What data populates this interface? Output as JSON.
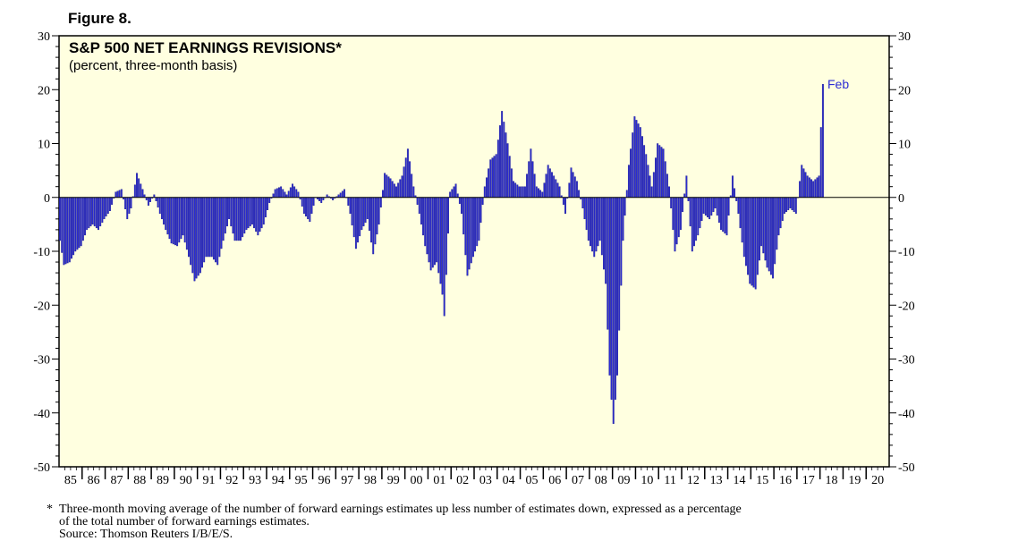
{
  "figure_label": "Figure 8.",
  "chart_data": {
    "type": "bar",
    "title": "S&P 500 NET EARNINGS REVISIONS*",
    "subtitle": "(percent, three-month basis)",
    "xlabel": "",
    "ylabel": "",
    "ylim": [
      -50,
      30
    ],
    "yticks": [
      30,
      20,
      10,
      0,
      -10,
      -20,
      -30,
      -40,
      -50
    ],
    "x_start": "1985-01",
    "x_end": "2020-12",
    "year_labels": [
      "85",
      "86",
      "87",
      "88",
      "89",
      "90",
      "91",
      "92",
      "93",
      "94",
      "95",
      "96",
      "97",
      "98",
      "99",
      "00",
      "01",
      "02",
      "03",
      "04",
      "05",
      "06",
      "07",
      "08",
      "09",
      "10",
      "11",
      "12",
      "13",
      "14",
      "15",
      "16",
      "17",
      "18",
      "19",
      "20"
    ],
    "annotation": "Feb",
    "grid": false,
    "legend": "none",
    "bar_color": "#2b2bd4",
    "background_color": "#ffffe0",
    "anchors": [
      [
        "1985-01",
        -8
      ],
      [
        "1985-03",
        -12.5
      ],
      [
        "1985-06",
        -12
      ],
      [
        "1985-09",
        -10
      ],
      [
        "1985-12",
        -9
      ],
      [
        "1986-03",
        -6
      ],
      [
        "1986-06",
        -5
      ],
      [
        "1986-09",
        -6
      ],
      [
        "1986-12",
        -4
      ],
      [
        "1987-03",
        -2.5
      ],
      [
        "1987-06",
        1
      ],
      [
        "1987-09",
        1.5
      ],
      [
        "1987-12",
        -4
      ],
      [
        "1988-02",
        -2
      ],
      [
        "1988-05",
        4.5
      ],
      [
        "1988-08",
        1.5
      ],
      [
        "1988-11",
        -1.5
      ],
      [
        "1989-02",
        0.5
      ],
      [
        "1989-05",
        -3
      ],
      [
        "1989-08",
        -6
      ],
      [
        "1989-11",
        -8.5
      ],
      [
        "1990-02",
        -9
      ],
      [
        "1990-05",
        -7
      ],
      [
        "1990-08",
        -11
      ],
      [
        "1990-11",
        -15.5
      ],
      [
        "1991-02",
        -14
      ],
      [
        "1991-05",
        -11
      ],
      [
        "1991-08",
        -11
      ],
      [
        "1991-11",
        -12.5
      ],
      [
        "1992-02",
        -8
      ],
      [
        "1992-05",
        -4
      ],
      [
        "1992-08",
        -8
      ],
      [
        "1992-11",
        -8
      ],
      [
        "1993-02",
        -6
      ],
      [
        "1993-05",
        -5
      ],
      [
        "1993-08",
        -7
      ],
      [
        "1993-11",
        -5
      ],
      [
        "1994-02",
        -1
      ],
      [
        "1994-05",
        1.5
      ],
      [
        "1994-08",
        2
      ],
      [
        "1994-11",
        0.5
      ],
      [
        "1995-02",
        2.5
      ],
      [
        "1995-05",
        1
      ],
      [
        "1995-08",
        -3
      ],
      [
        "1995-11",
        -4.5
      ],
      [
        "1996-02",
        0
      ],
      [
        "1996-05",
        -1
      ],
      [
        "1996-08",
        0.5
      ],
      [
        "1996-11",
        -0.5
      ],
      [
        "1997-02",
        0.5
      ],
      [
        "1997-05",
        1.5
      ],
      [
        "1997-08",
        -3
      ],
      [
        "1997-11",
        -9.5
      ],
      [
        "1998-02",
        -6
      ],
      [
        "1998-05",
        -4
      ],
      [
        "1998-08",
        -10.5
      ],
      [
        "1998-11",
        -5
      ],
      [
        "1999-02",
        4.5
      ],
      [
        "1999-05",
        3.5
      ],
      [
        "1999-08",
        2
      ],
      [
        "1999-11",
        4
      ],
      [
        "2000-02",
        9
      ],
      [
        "2000-05",
        2
      ],
      [
        "2000-08",
        -3
      ],
      [
        "2000-11",
        -9
      ],
      [
        "2001-02",
        -13.5
      ],
      [
        "2001-05",
        -12
      ],
      [
        "2001-08",
        -18
      ],
      [
        "2001-09",
        -22
      ],
      [
        "2001-12",
        1
      ],
      [
        "2002-03",
        2.5
      ],
      [
        "2002-06",
        -3
      ],
      [
        "2002-09",
        -14.5
      ],
      [
        "2002-12",
        -11
      ],
      [
        "2003-03",
        -8
      ],
      [
        "2003-06",
        2
      ],
      [
        "2003-09",
        7
      ],
      [
        "2003-12",
        8
      ],
      [
        "2004-03",
        16
      ],
      [
        "2004-06",
        10
      ],
      [
        "2004-09",
        3
      ],
      [
        "2004-12",
        2
      ],
      [
        "2005-03",
        2
      ],
      [
        "2005-06",
        9
      ],
      [
        "2005-09",
        2
      ],
      [
        "2005-12",
        1
      ],
      [
        "2006-03",
        6
      ],
      [
        "2006-06",
        4
      ],
      [
        "2006-09",
        2
      ],
      [
        "2006-12",
        -3
      ],
      [
        "2007-03",
        5.5
      ],
      [
        "2007-06",
        3
      ],
      [
        "2007-09",
        -2
      ],
      [
        "2007-12",
        -8
      ],
      [
        "2008-03",
        -11
      ],
      [
        "2008-06",
        -8
      ],
      [
        "2008-09",
        -16
      ],
      [
        "2008-11",
        -33
      ],
      [
        "2009-01",
        -42
      ],
      [
        "2009-03",
        -33
      ],
      [
        "2009-06",
        -8
      ],
      [
        "2009-09",
        6
      ],
      [
        "2009-12",
        15
      ],
      [
        "2010-03",
        13
      ],
      [
        "2010-06",
        8
      ],
      [
        "2010-09",
        2
      ],
      [
        "2010-12",
        10
      ],
      [
        "2011-03",
        9
      ],
      [
        "2011-06",
        2
      ],
      [
        "2011-09",
        -10
      ],
      [
        "2011-12",
        -6
      ],
      [
        "2012-03",
        4
      ],
      [
        "2012-06",
        -10
      ],
      [
        "2012-09",
        -7
      ],
      [
        "2012-12",
        -3
      ],
      [
        "2013-03",
        -4
      ],
      [
        "2013-06",
        -2
      ],
      [
        "2013-09",
        -6
      ],
      [
        "2013-12",
        -7
      ],
      [
        "2014-03",
        4
      ],
      [
        "2014-06",
        -3
      ],
      [
        "2014-09",
        -11
      ],
      [
        "2014-12",
        -16
      ],
      [
        "2015-03",
        -17
      ],
      [
        "2015-06",
        -9
      ],
      [
        "2015-09",
        -13
      ],
      [
        "2015-12",
        -15
      ],
      [
        "2016-03",
        -7
      ],
      [
        "2016-06",
        -3
      ],
      [
        "2016-09",
        -2
      ],
      [
        "2016-12",
        -3
      ],
      [
        "2017-03",
        6
      ],
      [
        "2017-06",
        4
      ],
      [
        "2017-09",
        3
      ],
      [
        "2017-12",
        4
      ],
      [
        "2018-01",
        13
      ],
      [
        "2018-02",
        21
      ]
    ]
  },
  "footnote": {
    "marker": "*",
    "line1": "Three-month moving average of the number of forward earnings estimates up less number of estimates down, expressed as a percentage",
    "line2": "of the total number of forward earnings estimates.",
    "line3": "Source: Thomson Reuters I/B/E/S."
  }
}
